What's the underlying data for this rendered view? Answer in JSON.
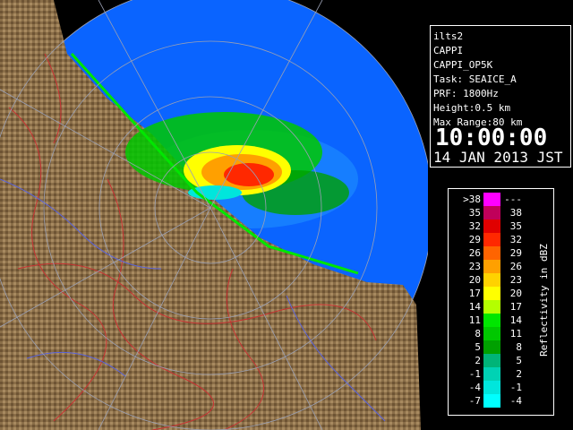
{
  "info": {
    "lines": [
      "ilts2",
      "CAPPI",
      "CAPPI_OP5K",
      "Task: SEAICE_A",
      "PRF: 1800Hz",
      "Height:0.5 km",
      "Max Range:80 km"
    ],
    "time": "10:00:00",
    "date": "14 JAN 2013 JST"
  },
  "legend": {
    "title": "Reflectivity in dBZ",
    "rows": [
      {
        "low": ">38",
        "high": "---",
        "color": "#ff00ff"
      },
      {
        "low": "35",
        "high": "38",
        "color": "#c0005a"
      },
      {
        "low": "32",
        "high": "35",
        "color": "#e00000"
      },
      {
        "low": "29",
        "high": "32",
        "color": "#ff2800"
      },
      {
        "low": "26",
        "high": "29",
        "color": "#ff6400"
      },
      {
        "low": "23",
        "high": "26",
        "color": "#ffa000"
      },
      {
        "low": "20",
        "high": "23",
        "color": "#ffd200"
      },
      {
        "low": "17",
        "high": "20",
        "color": "#ffff00"
      },
      {
        "low": "14",
        "high": "17",
        "color": "#b4ff00"
      },
      {
        "low": "11",
        "high": "14",
        "color": "#00e600"
      },
      {
        "low": "8",
        "high": "11",
        "color": "#00c800"
      },
      {
        "low": "5",
        "high": "8",
        "color": "#00a000"
      },
      {
        "low": "2",
        "high": "5",
        "color": "#00b478"
      },
      {
        "low": "-1",
        "high": "2",
        "color": "#00d2b4"
      },
      {
        "low": "-4",
        "high": "-1",
        "color": "#00e6dc"
      },
      {
        "low": "-7",
        "high": "-4",
        "color": "#00ffff"
      }
    ]
  }
}
